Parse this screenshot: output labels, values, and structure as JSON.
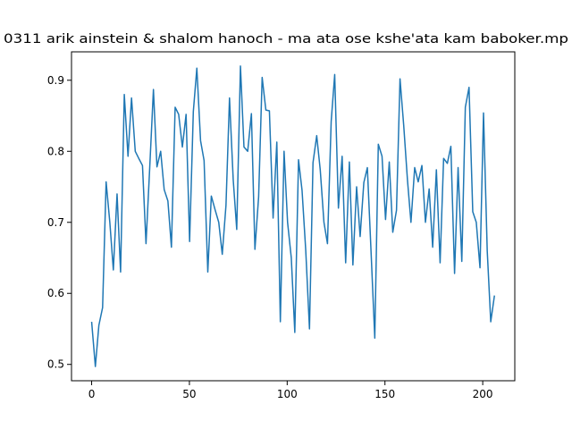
{
  "chart_data": {
    "type": "line",
    "title": "0311 arik ainstein & shalom hanoch - ma ata ose kshe'ata kam baboker.mp",
    "color": "#1f77b4",
    "xlim": [
      -10.3,
      216.4
    ],
    "xticks": [
      0,
      50,
      100,
      150,
      200
    ],
    "ylim": [
      0.477,
      0.94
    ],
    "yticks": [
      0.5,
      0.6,
      0.7,
      0.8,
      0.9
    ],
    "x": [
      0,
      1.9,
      3.7,
      5.6,
      7.4,
      9.3,
      11.1,
      13.0,
      14.8,
      16.7,
      18.6,
      20.4,
      22.3,
      24.1,
      26.0,
      27.8,
      29.7,
      31.6,
      33.4,
      35.3,
      37.1,
      39.0,
      40.8,
      42.7,
      44.5,
      46.4,
      48.3,
      50.1,
      52.0,
      53.8,
      55.7,
      57.5,
      59.4,
      61.2,
      63.1,
      65.0,
      66.8,
      68.7,
      70.5,
      72.4,
      74.2,
      76.1,
      77.9,
      79.8,
      81.7,
      83.5,
      85.4,
      87.2,
      89.1,
      90.9,
      92.8,
      94.7,
      96.5,
      98.4,
      100.2,
      102.1,
      103.9,
      105.8,
      107.6,
      109.5,
      111.4,
      113.2,
      115.1,
      116.9,
      118.8,
      120.6,
      122.5,
      124.3,
      126.2,
      128.1,
      129.9,
      131.8,
      133.6,
      135.5,
      137.3,
      139.2,
      141.0,
      142.9,
      144.8,
      146.6,
      148.5,
      150.3,
      152.2,
      154.0,
      155.9,
      157.7,
      159.6,
      161.5,
      163.3,
      165.2,
      167.0,
      168.9,
      170.7,
      172.6,
      174.4,
      176.3,
      178.2,
      180.0,
      181.9,
      183.7,
      185.6,
      187.4,
      189.3,
      191.1,
      193.0,
      194.9,
      196.7,
      198.6,
      200.4,
      202.3,
      204.1,
      206.0
    ],
    "values": [
      0.56,
      0.497,
      0.555,
      0.58,
      0.757,
      0.7,
      0.633,
      0.74,
      0.63,
      0.88,
      0.793,
      0.875,
      0.8,
      0.79,
      0.78,
      0.67,
      0.777,
      0.887,
      0.778,
      0.8,
      0.746,
      0.73,
      0.665,
      0.862,
      0.852,
      0.806,
      0.852,
      0.673,
      0.856,
      0.917,
      0.815,
      0.787,
      0.63,
      0.737,
      0.718,
      0.7,
      0.655,
      0.724,
      0.875,
      0.76,
      0.69,
      0.92,
      0.806,
      0.8,
      0.853,
      0.662,
      0.736,
      0.904,
      0.858,
      0.857,
      0.706,
      0.813,
      0.56,
      0.8,
      0.7,
      0.65,
      0.545,
      0.788,
      0.745,
      0.66,
      0.55,
      0.784,
      0.822,
      0.774,
      0.7,
      0.67,
      0.842,
      0.908,
      0.72,
      0.793,
      0.643,
      0.785,
      0.64,
      0.75,
      0.68,
      0.756,
      0.777,
      0.658,
      0.537,
      0.81,
      0.793,
      0.704,
      0.785,
      0.686,
      0.717,
      0.902,
      0.836,
      0.76,
      0.7,
      0.777,
      0.757,
      0.78,
      0.7,
      0.747,
      0.665,
      0.774,
      0.643,
      0.79,
      0.783,
      0.807,
      0.628,
      0.777,
      0.645,
      0.862,
      0.89,
      0.715,
      0.7,
      0.636,
      0.854,
      0.66,
      0.56,
      0.597
    ]
  }
}
